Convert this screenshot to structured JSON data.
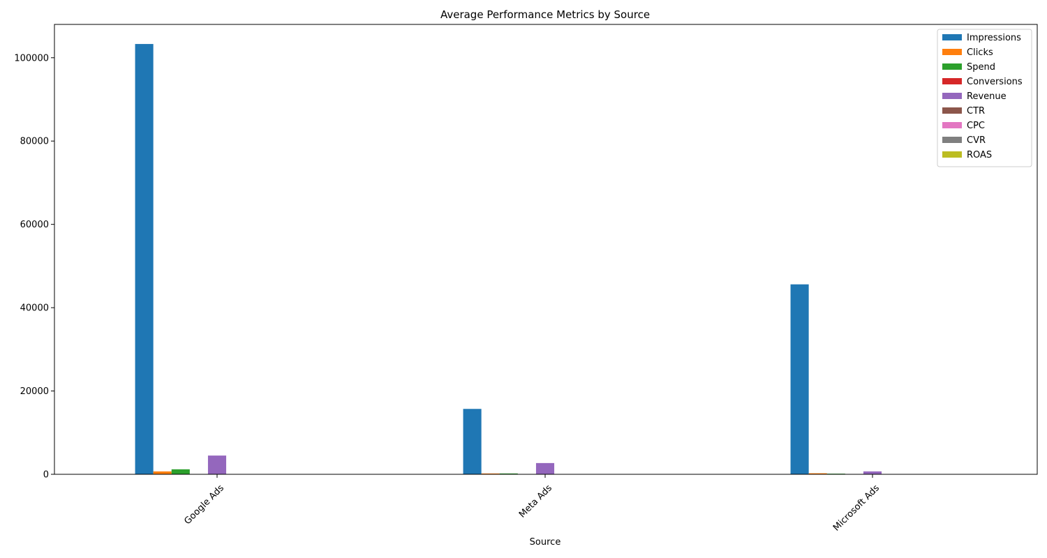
{
  "chart_data": {
    "type": "bar",
    "title": "Average Performance Metrics by Source",
    "xlabel": "Source",
    "ylabel": "",
    "categories": [
      "Google Ads",
      "Meta Ads",
      "Microsoft Ads"
    ],
    "ylim": [
      0,
      108000
    ],
    "yticks": [
      0,
      20000,
      40000,
      60000,
      80000,
      100000
    ],
    "legend_position": "top-right",
    "grid": false,
    "series": [
      {
        "name": "Impressions",
        "color": "#1f77b4",
        "values": [
          103300,
          15700,
          45600
        ]
      },
      {
        "name": "Clicks",
        "color": "#ff7f0e",
        "values": [
          700,
          200,
          250
        ]
      },
      {
        "name": "Spend",
        "color": "#2ca02c",
        "values": [
          1200,
          200,
          150
        ]
      },
      {
        "name": "Conversions",
        "color": "#d62728",
        "values": [
          40,
          10,
          10
        ]
      },
      {
        "name": "Revenue",
        "color": "#9467bd",
        "values": [
          4500,
          2700,
          700
        ]
      },
      {
        "name": "CTR",
        "color": "#8c564b",
        "values": [
          0.02,
          0.01,
          0.01
        ]
      },
      {
        "name": "CPC",
        "color": "#e377c2",
        "values": [
          1.7,
          1.0,
          0.6
        ]
      },
      {
        "name": "CVR",
        "color": "#7f7f7f",
        "values": [
          0.05,
          0.05,
          0.04
        ]
      },
      {
        "name": "ROAS",
        "color": "#bcbd22",
        "values": [
          3.7,
          13.5,
          4.7
        ]
      }
    ]
  }
}
